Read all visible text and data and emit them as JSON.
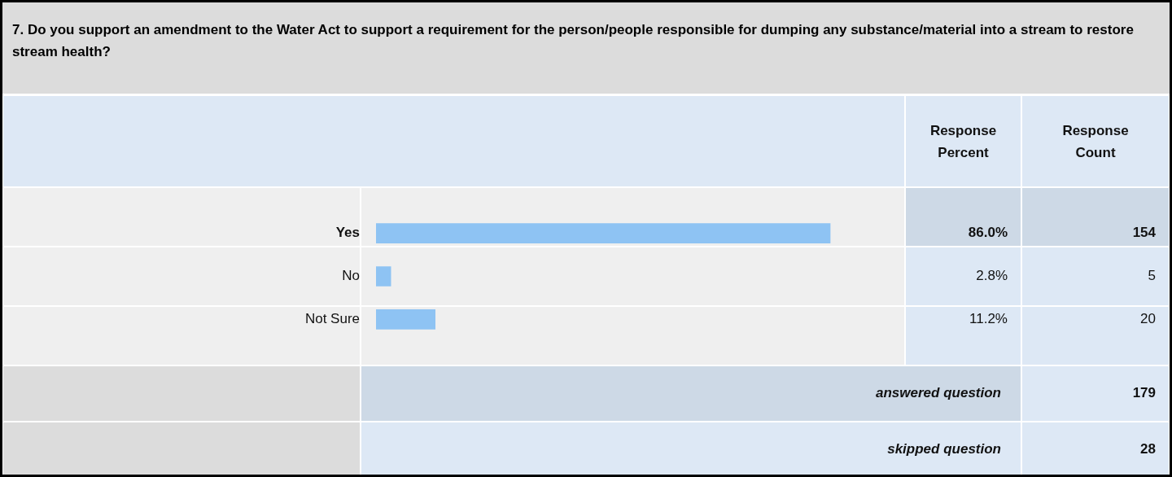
{
  "chart_data": {
    "type": "bar",
    "orientation": "horizontal",
    "title": "7. Do you support an amendment to the Water Act to support a requirement for the person/people responsible for dumping any substance/material into a stream to restore stream health?",
    "categories": [
      "Yes",
      "No",
      "Not Sure"
    ],
    "values": [
      86.0,
      2.8,
      11.2
    ],
    "value_labels": [
      "86.0%",
      "2.8%",
      "11.2%"
    ],
    "color": "#8ec3f3",
    "tick_labels": "y",
    "legend": false,
    "annotations": [
      "Response Percent",
      "Response Count",
      "154",
      "5",
      "20",
      "answered question",
      "179",
      "skipped question",
      "28"
    ]
  }
}
